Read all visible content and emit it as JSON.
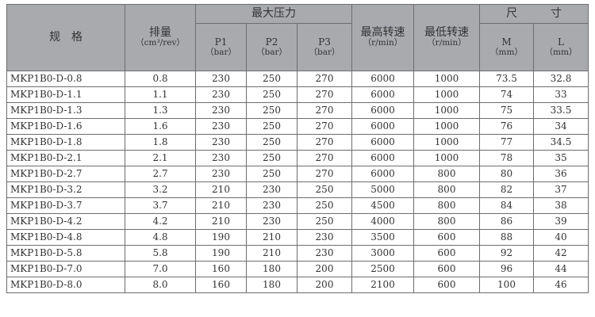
{
  "headers": {
    "spec": "规　格",
    "disp": "排量",
    "disp_unit": "（cm³/rev）",
    "pmax": "最大压力",
    "p1": "P1",
    "p2": "P2",
    "p3": "P3",
    "bar": "（bar）",
    "nmax": "最高转速",
    "nmin": "最低转速",
    "rpm": "（r/min）",
    "size": "尺　　　寸",
    "m": "M",
    "l": "L",
    "mm": "（mm）"
  },
  "rows": [
    [
      "MKP1B0-D-0.8",
      "0.8",
      "230",
      "250",
      "270",
      "6000",
      "1000",
      "73.5",
      "32.8"
    ],
    [
      "MKP1B0-D-1.1",
      "1.1",
      "230",
      "250",
      "270",
      "6000",
      "1000",
      "74",
      "33"
    ],
    [
      "MKP1B0-D-1.3",
      "1.3",
      "230",
      "250",
      "270",
      "6000",
      "1000",
      "75",
      "33.5"
    ],
    [
      "MKP1B0-D-1.6",
      "1.6",
      "230",
      "250",
      "270",
      "6000",
      "1000",
      "76",
      "34"
    ],
    [
      "MKP1B0-D-1.8",
      "1.8",
      "230",
      "250",
      "270",
      "6000",
      "1000",
      "77",
      "34.5"
    ],
    [
      "MKP1B0-D-2.1",
      "2.1",
      "230",
      "250",
      "270",
      "6000",
      "1000",
      "78",
      "35"
    ],
    [
      "MKP1B0-D-2.7",
      "2.7",
      "230",
      "250",
      "270",
      "6000",
      "800",
      "80",
      "36"
    ],
    [
      "MKP1B0-D-3.2",
      "3.2",
      "210",
      "230",
      "250",
      "5000",
      "800",
      "82",
      "37"
    ],
    [
      "MKP1B0-D-3.7",
      "3.7",
      "210",
      "230",
      "250",
      "4500",
      "800",
      "84",
      "38"
    ],
    [
      "MKP1B0-D-4.2",
      "4.2",
      "210",
      "230",
      "250",
      "4000",
      "800",
      "86",
      "39"
    ],
    [
      "MKP1B0-D-4.8",
      "4.8",
      "190",
      "210",
      "230",
      "3500",
      "600",
      "88",
      "40"
    ],
    [
      "MKP1B0-D-5.8",
      "5.8",
      "190",
      "210",
      "230",
      "3000",
      "600",
      "92",
      "42"
    ],
    [
      "MKP1B0-D-7.0",
      "7.0",
      "160",
      "180",
      "200",
      "2500",
      "600",
      "96",
      "44"
    ],
    [
      "MKP1B0-D-8.0",
      "8.0",
      "160",
      "180",
      "200",
      "2100",
      "600",
      "100",
      "46"
    ]
  ]
}
